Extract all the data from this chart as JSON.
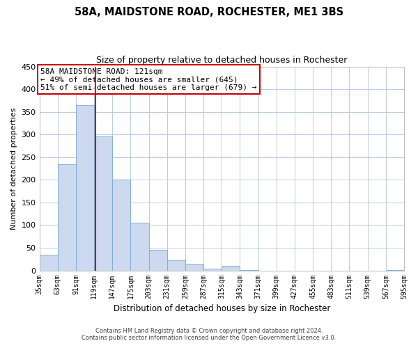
{
  "title": "58A, MAIDSTONE ROAD, ROCHESTER, ME1 3BS",
  "subtitle": "Size of property relative to detached houses in Rochester",
  "xlabel": "Distribution of detached houses by size in Rochester",
  "ylabel": "Number of detached properties",
  "bar_color": "#ccd9ee",
  "bar_edge_color": "#7aaad4",
  "background_color": "#ffffff",
  "grid_color": "#b8cce4",
  "property_line_x": 121,
  "property_line_color": "#cc0000",
  "annotation_box_edge_color": "#cc0000",
  "annotation_line1": "58A MAIDSTONE ROAD: 121sqm",
  "annotation_line2": "← 49% of detached houses are smaller (645)",
  "annotation_line3": "51% of semi-detached houses are larger (679) →",
  "bin_edges": [
    35,
    63,
    91,
    119,
    147,
    175,
    203,
    231,
    259,
    287,
    315,
    343,
    371,
    399,
    427,
    455,
    483,
    511,
    539,
    567,
    595
  ],
  "bin_labels": [
    "35sqm",
    "63sqm",
    "91sqm",
    "119sqm",
    "147sqm",
    "175sqm",
    "203sqm",
    "231sqm",
    "259sqm",
    "287sqm",
    "315sqm",
    "343sqm",
    "371sqm",
    "399sqm",
    "427sqm",
    "455sqm",
    "483sqm",
    "511sqm",
    "539sqm",
    "567sqm",
    "595sqm"
  ],
  "counts": [
    35,
    235,
    365,
    295,
    200,
    105,
    45,
    22,
    15,
    4,
    10,
    1,
    0,
    0,
    0,
    0,
    0,
    0,
    0,
    1
  ],
  "ylim": [
    0,
    450
  ],
  "yticks": [
    0,
    50,
    100,
    150,
    200,
    250,
    300,
    350,
    400,
    450
  ],
  "footnote1": "Contains HM Land Registry data © Crown copyright and database right 2024.",
  "footnote2": "Contains public sector information licensed under the Open Government Licence v3.0."
}
